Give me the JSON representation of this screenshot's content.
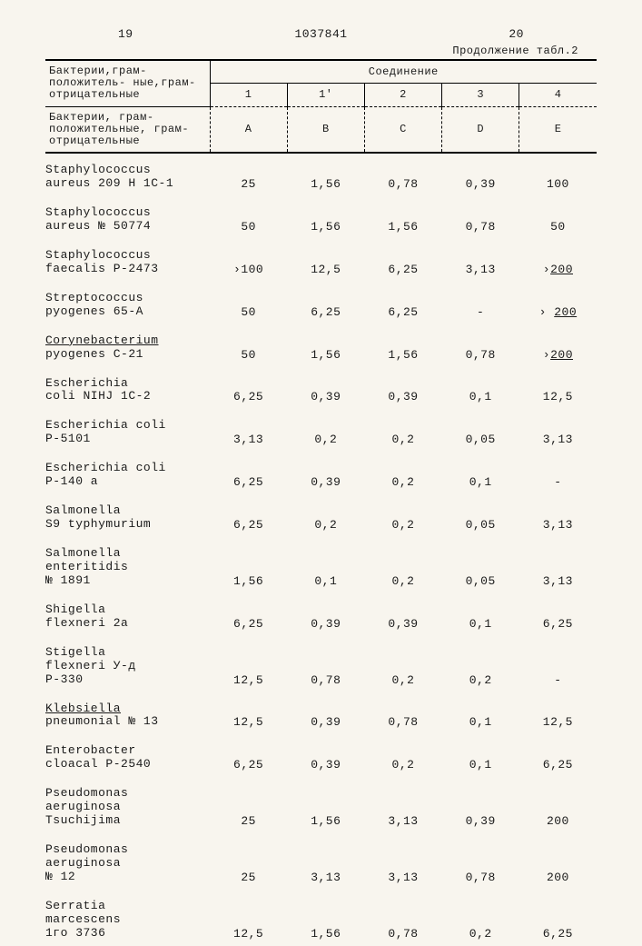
{
  "header": {
    "left_page": "19",
    "doc_number": "1037841",
    "right_page": "20",
    "continuation": "Продолжение табл.2",
    "row_label_1": "Бактерии,грам-положитель-\nные,грам-отрицательные",
    "group_label": "Соединение",
    "nums": [
      "1",
      "1'",
      "2",
      "3",
      "4"
    ],
    "row_label_2": "Бактерии, грам-положительные,\nграм-отрицательные",
    "letters": [
      "A",
      "B",
      "C",
      "D",
      "E"
    ]
  },
  "rows": [
    {
      "label": "Staphylococcus\naureus 209 H 1C-1",
      "v": [
        "25",
        "1,56",
        "0,78",
        "0,39",
        "100"
      ]
    },
    {
      "label": "Staphylococcus\naureus № 50774",
      "v": [
        "50",
        "1,56",
        "1,56",
        "0,78",
        "50"
      ]
    },
    {
      "label": "Staphylococcus\nfaecalis P-2473",
      "v": [
        "›100",
        "12,5",
        "6,25",
        "3,13",
        "›200"
      ],
      "ul": 4
    },
    {
      "label": "Streptococcus\npyogenes 65-A",
      "v": [
        "50",
        "6,25",
        "6,25",
        "-",
        "› 200"
      ],
      "ul": 4
    },
    {
      "label": "Corynebacterium\npyogenes C-21",
      "v": [
        "50",
        "1,56",
        "1,56",
        "0,78",
        "›200"
      ],
      "ul": 4,
      "ulL": true
    },
    {
      "label": "Escherichia\ncoli NIHJ 1C-2",
      "v": [
        "6,25",
        "0,39",
        "0,39",
        "0,1",
        "12,5"
      ]
    },
    {
      "label": "Escherichia coli\nP-5101",
      "v": [
        "3,13",
        "0,2",
        "0,2",
        "0,05",
        "3,13"
      ]
    },
    {
      "label": "Escherichia coli\nP-140 a",
      "v": [
        "6,25",
        "0,39",
        "0,2",
        "0,1",
        "-"
      ]
    },
    {
      "label": "Salmonella\nS9 typhymurium",
      "v": [
        "6,25",
        "0,2",
        "0,2",
        "0,05",
        "3,13"
      ]
    },
    {
      "label": "Salmonella\nenteritidis\n№ 1891",
      "v": [
        "1,56",
        "0,1",
        "0,2",
        "0,05",
        "3,13"
      ]
    },
    {
      "label": "Shigella\nflexneri 2a",
      "v": [
        "6,25",
        "0,39",
        "0,39",
        "0,1",
        "6,25"
      ]
    },
    {
      "label": "Stigella\nflexneri У-д\nP-330",
      "v": [
        "12,5",
        "0,78",
        "0,2",
        "0,2",
        "-"
      ]
    },
    {
      "label": "Klebsiella\npneumonial № 13",
      "v": [
        "12,5",
        "0,39",
        "0,78",
        "0,1",
        "12,5"
      ],
      "ulL": true
    },
    {
      "label": "Enterobacter\ncloacal P-2540",
      "v": [
        "6,25",
        "0,39",
        "0,2",
        "0,1",
        "6,25"
      ]
    },
    {
      "label": "Pseudomonas\naeruginosa\nTsuchijima",
      "v": [
        "25",
        "1,56",
        "3,13",
        "0,39",
        "200"
      ]
    },
    {
      "label": "Pseudomonas\naeruginosa\n№ 12",
      "v": [
        "25",
        "3,13",
        "3,13",
        "0,78",
        "200"
      ]
    },
    {
      "label": "Serratia\nmarcescens\n1го 3736",
      "v": [
        "12,5",
        "1,56",
        "0,78",
        "0,2",
        "6,25"
      ]
    }
  ]
}
